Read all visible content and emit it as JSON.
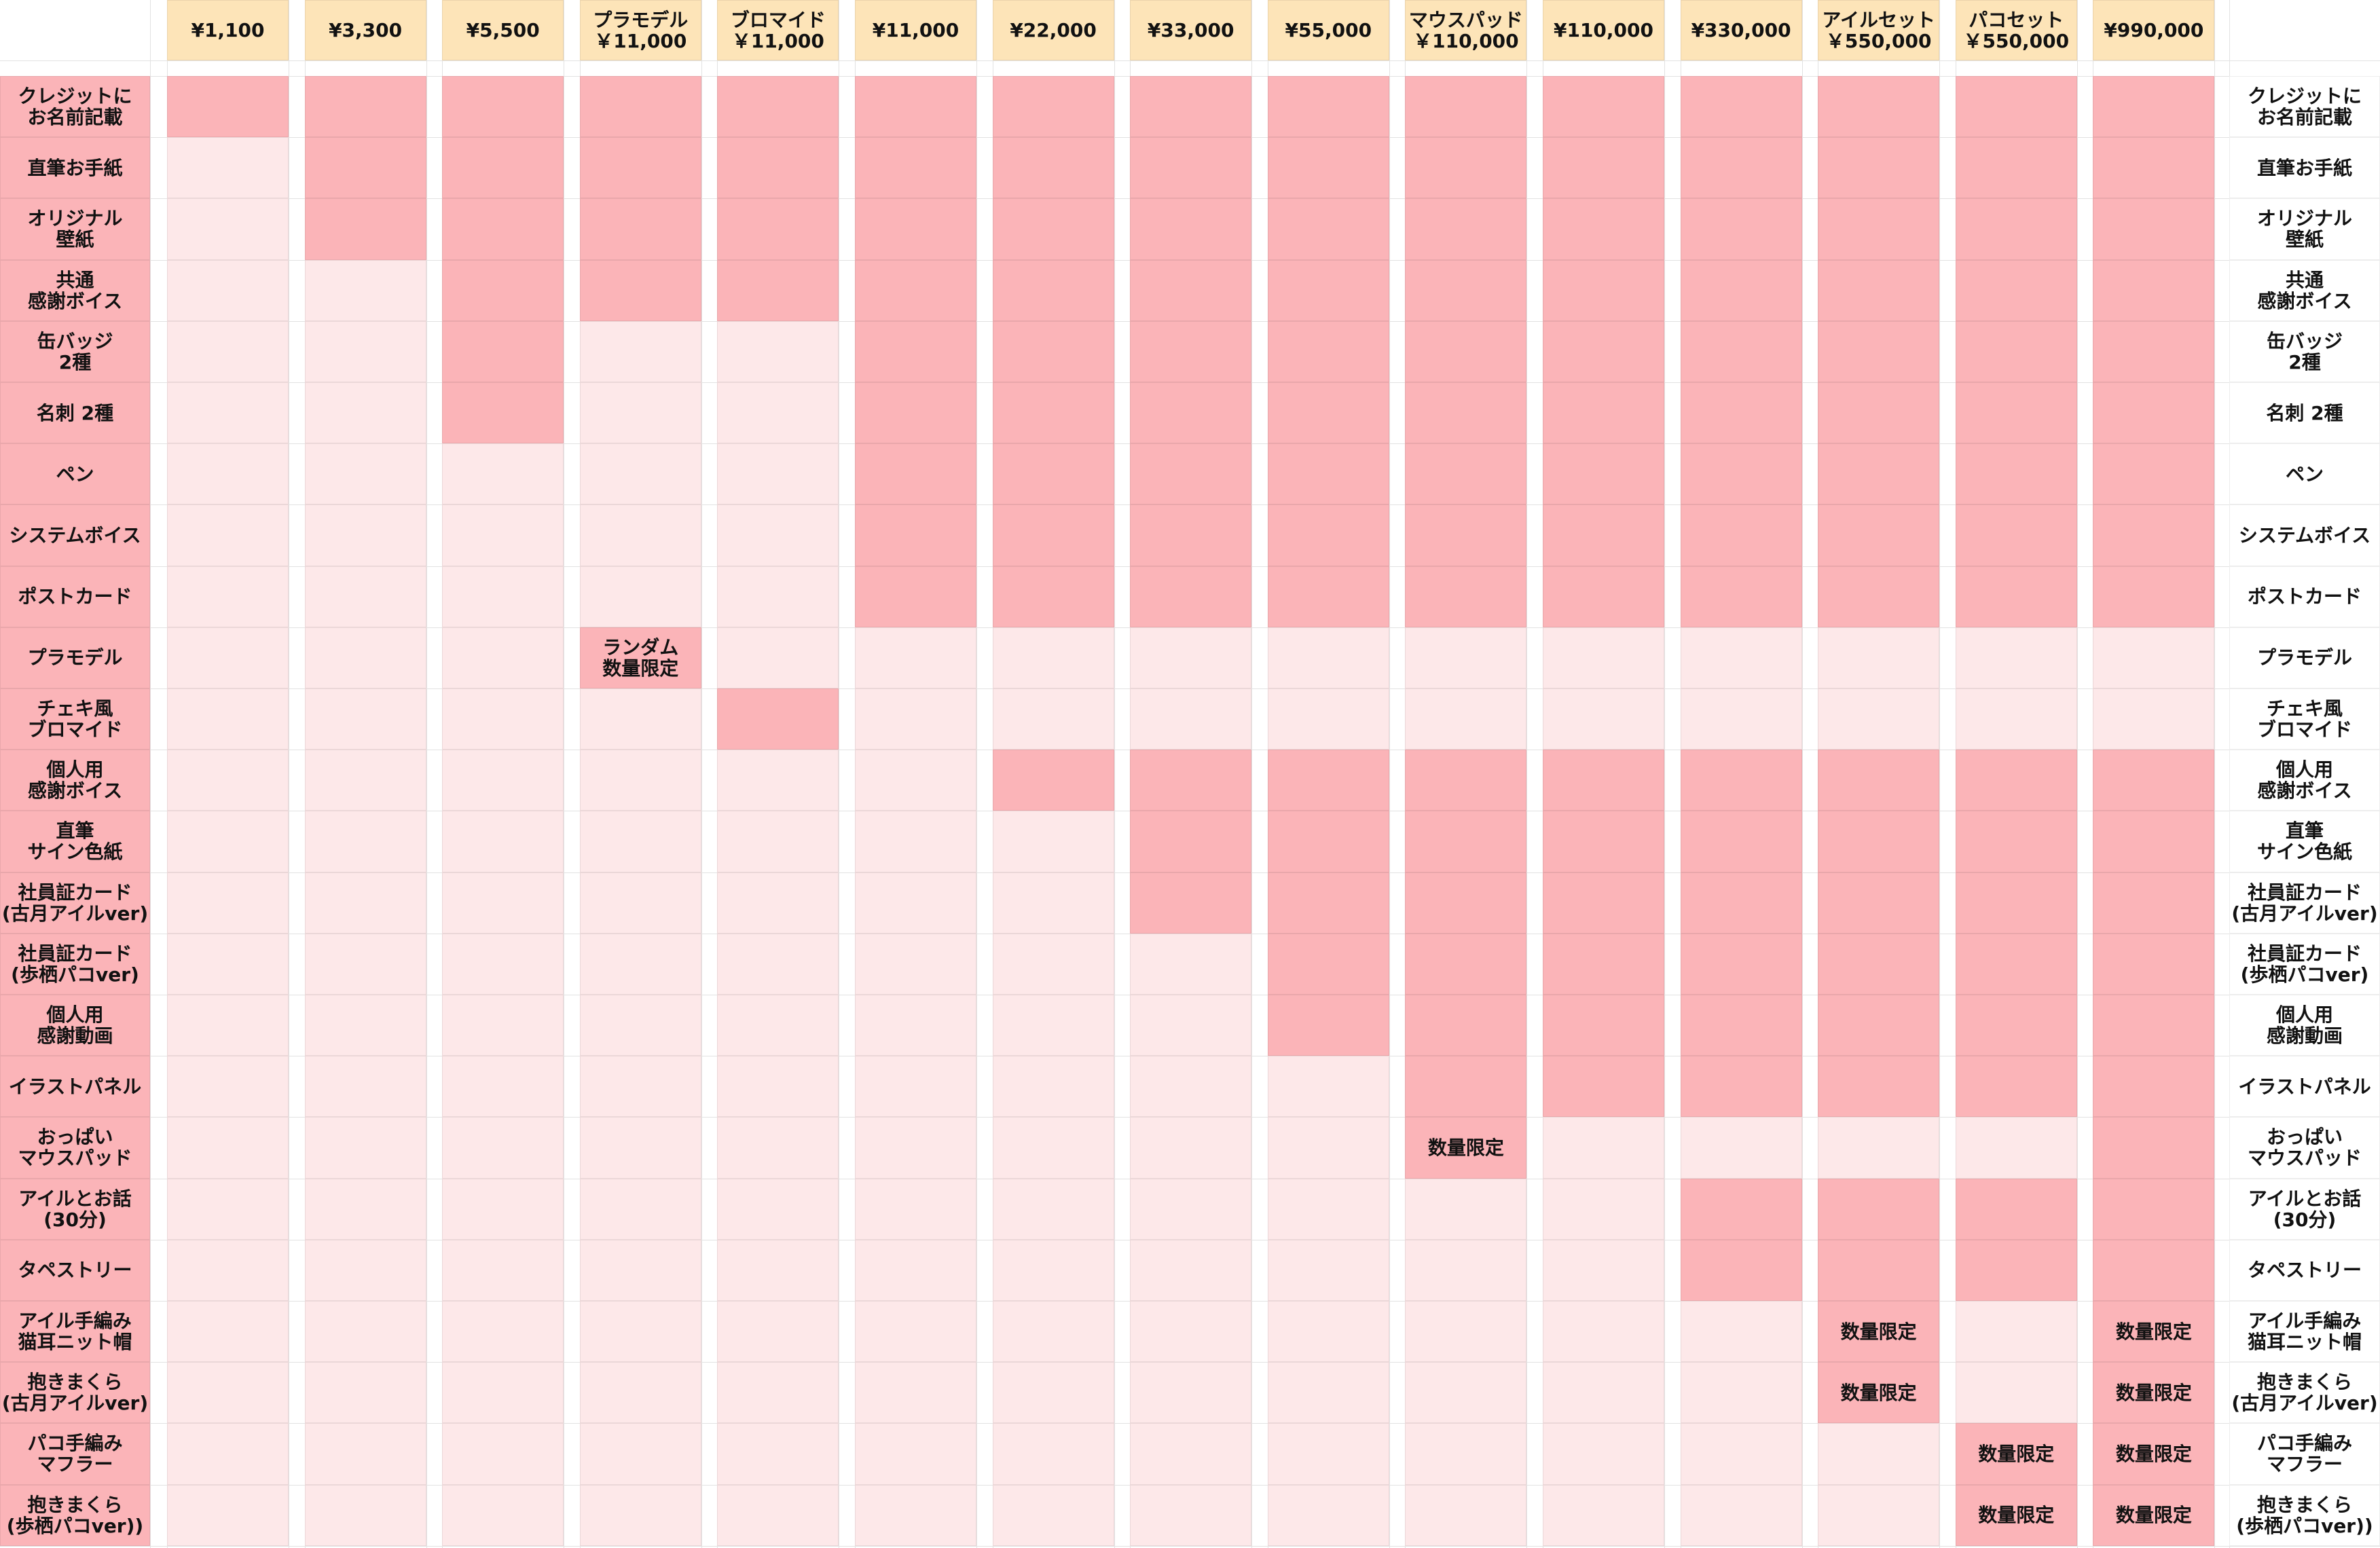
{
  "table": {
    "colors": {
      "header": "#fde4b8",
      "included": "#fbb4b8",
      "excluded": "#fde8e9",
      "label": "#fbb4b8"
    },
    "columns": [
      "¥1,100",
      "¥3,300",
      "¥5,500",
      "プラモデル\n￥11,000",
      "ブロマイド\n￥11,000",
      "¥11,000",
      "¥22,000",
      "¥33,000",
      "¥55,000",
      "マウスパッド\n￥110,000",
      "¥110,000",
      "¥330,000",
      "アイルセット\n￥550,000",
      "パコセット\n￥550,000",
      "¥990,000"
    ],
    "rows": [
      {
        "label": "クレジットに\nお名前記載",
        "cells": [
          1,
          1,
          1,
          1,
          1,
          1,
          1,
          1,
          1,
          1,
          1,
          1,
          1,
          1,
          1
        ]
      },
      {
        "label": "直筆お手紙",
        "cells": [
          0,
          1,
          1,
          1,
          1,
          1,
          1,
          1,
          1,
          1,
          1,
          1,
          1,
          1,
          1
        ]
      },
      {
        "label": "オリジナル\n壁紙",
        "cells": [
          0,
          1,
          1,
          1,
          1,
          1,
          1,
          1,
          1,
          1,
          1,
          1,
          1,
          1,
          1
        ]
      },
      {
        "label": "共通\n感謝ボイス",
        "cells": [
          0,
          0,
          1,
          1,
          1,
          1,
          1,
          1,
          1,
          1,
          1,
          1,
          1,
          1,
          1
        ]
      },
      {
        "label": "缶バッジ\n2種",
        "cells": [
          0,
          0,
          1,
          0,
          0,
          1,
          1,
          1,
          1,
          1,
          1,
          1,
          1,
          1,
          1
        ]
      },
      {
        "label": "名刺 2種",
        "cells": [
          0,
          0,
          1,
          0,
          0,
          1,
          1,
          1,
          1,
          1,
          1,
          1,
          1,
          1,
          1
        ]
      },
      {
        "label": "ペン",
        "cells": [
          0,
          0,
          0,
          0,
          0,
          1,
          1,
          1,
          1,
          1,
          1,
          1,
          1,
          1,
          1
        ]
      },
      {
        "label": "システムボイス",
        "cells": [
          0,
          0,
          0,
          0,
          0,
          1,
          1,
          1,
          1,
          1,
          1,
          1,
          1,
          1,
          1
        ]
      },
      {
        "label": "ポストカード",
        "cells": [
          0,
          0,
          0,
          0,
          0,
          1,
          1,
          1,
          1,
          1,
          1,
          1,
          1,
          1,
          1
        ]
      },
      {
        "label": "プラモデル",
        "cells": [
          0,
          0,
          0,
          "ランダム\n数量限定",
          0,
          0,
          0,
          0,
          0,
          0,
          0,
          0,
          0,
          0,
          0
        ]
      },
      {
        "label": "チェキ風\nブロマイド",
        "cells": [
          0,
          0,
          0,
          0,
          1,
          0,
          0,
          0,
          0,
          0,
          0,
          0,
          0,
          0,
          0
        ]
      },
      {
        "label": "個人用\n感謝ボイス",
        "cells": [
          0,
          0,
          0,
          0,
          0,
          0,
          1,
          1,
          1,
          1,
          1,
          1,
          1,
          1,
          1
        ]
      },
      {
        "label": "直筆\nサイン色紙",
        "cells": [
          0,
          0,
          0,
          0,
          0,
          0,
          0,
          1,
          1,
          1,
          1,
          1,
          1,
          1,
          1
        ]
      },
      {
        "label": "社員証カード\n(古月アイルver)",
        "cells": [
          0,
          0,
          0,
          0,
          0,
          0,
          0,
          1,
          1,
          1,
          1,
          1,
          1,
          1,
          1
        ]
      },
      {
        "label": "社員証カード\n(歩栖パコver)",
        "cells": [
          0,
          0,
          0,
          0,
          0,
          0,
          0,
          0,
          1,
          1,
          1,
          1,
          1,
          1,
          1
        ]
      },
      {
        "label": "個人用\n感謝動画",
        "cells": [
          0,
          0,
          0,
          0,
          0,
          0,
          0,
          0,
          1,
          1,
          1,
          1,
          1,
          1,
          1
        ]
      },
      {
        "label": "イラストパネル",
        "cells": [
          0,
          0,
          0,
          0,
          0,
          0,
          0,
          0,
          0,
          1,
          1,
          1,
          1,
          1,
          1
        ]
      },
      {
        "label": "おっぱい\nマウスパッド",
        "cells": [
          0,
          0,
          0,
          0,
          0,
          0,
          0,
          0,
          0,
          "数量限定",
          0,
          0,
          0,
          0,
          1
        ]
      },
      {
        "label": "アイルとお話\n(30分)",
        "cells": [
          0,
          0,
          0,
          0,
          0,
          0,
          0,
          0,
          0,
          0,
          0,
          1,
          1,
          1,
          1
        ]
      },
      {
        "label": "タペストリー",
        "cells": [
          0,
          0,
          0,
          0,
          0,
          0,
          0,
          0,
          0,
          0,
          0,
          1,
          1,
          1,
          1
        ]
      },
      {
        "label": "アイル手編み\n猫耳ニット帽",
        "cells": [
          0,
          0,
          0,
          0,
          0,
          0,
          0,
          0,
          0,
          0,
          0,
          0,
          "数量限定",
          0,
          "数量限定"
        ]
      },
      {
        "label": "抱きまくら\n(古月アイルver)",
        "cells": [
          0,
          0,
          0,
          0,
          0,
          0,
          0,
          0,
          0,
          0,
          0,
          0,
          "数量限定",
          0,
          "数量限定"
        ]
      },
      {
        "label": "パコ手編み\nマフラー",
        "cells": [
          0,
          0,
          0,
          0,
          0,
          0,
          0,
          0,
          0,
          0,
          0,
          0,
          0,
          "数量限定",
          "数量限定"
        ]
      },
      {
        "label": "抱きまくら\n(歩栖パコver))",
        "cells": [
          0,
          0,
          0,
          0,
          0,
          0,
          0,
          0,
          0,
          0,
          0,
          0,
          0,
          "数量限定",
          "数量限定"
        ]
      }
    ]
  }
}
